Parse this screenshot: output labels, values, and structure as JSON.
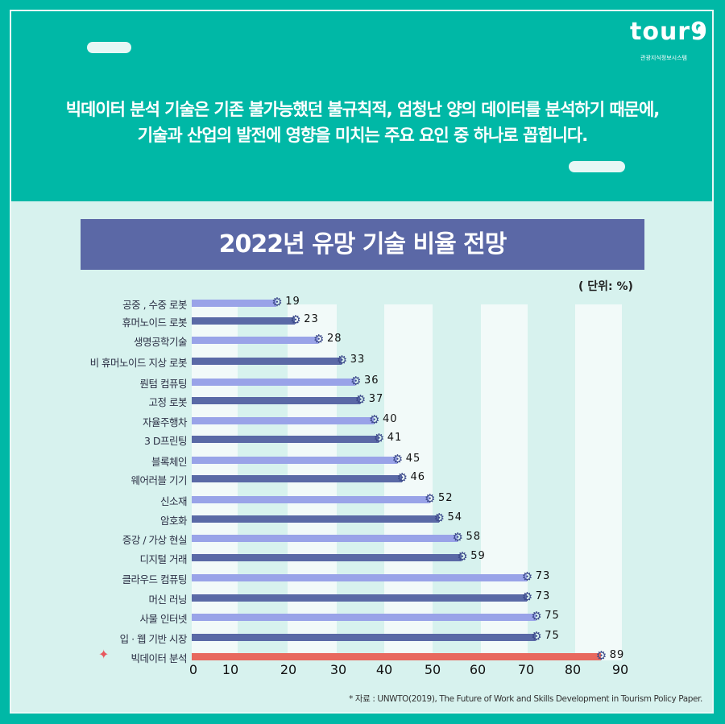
{
  "logo": {
    "text": "tour9",
    "subtitle": "관광지식정보시스템"
  },
  "headline": [
    "빅데이터 분석 기술은 기존 불가능했던 불규칙적, 엄청난 양의 데이터를 분석하기 때문에,",
    "기술과 산업의 발전에 영향을 미치는 주요 요인 중 하나로 꼽힙니다."
  ],
  "unit": "( 단위: %)",
  "source": "* 자료 : UNWTO(2019), The Future of Work and Skills Development in Tourism Policy Paper.",
  "colors": {
    "light": "#99a3e8",
    "dark": "#5a69a6",
    "highlight": "#e8685e",
    "teal": "#00b8a6",
    "banner": "#5b68a6"
  },
  "chart_data": {
    "type": "bar",
    "orientation": "horizontal",
    "title": "2022년 유망 기술 비율 전망",
    "categories": [
      "공중 , 수중 로봇",
      "휴머노이드 로봇",
      "생명공학기술",
      "비 휴머노이드 지상 로봇",
      "뤈텀 컴퓨팅",
      "고정 로봇",
      "자율주행차",
      "3 D프린팅",
      "블록체인",
      "웨어러블 기기",
      "신소재",
      "암호화",
      "증강 / 가상 현실",
      "디지털 거래",
      "클라우드 컴퓨팅",
      "머신 러닝",
      "사물 인터넷",
      "입 · 웹 기반 시장",
      "빅데이터 분석"
    ],
    "values": [
      19,
      23,
      28,
      33,
      36,
      37,
      40,
      41,
      45,
      46,
      52,
      54,
      58,
      59,
      73,
      73,
      75,
      75,
      89
    ],
    "highlight": "빅데이터 분석",
    "xticks": [
      "0",
      "10",
      "20",
      "30",
      "40",
      "50",
      "60",
      "70",
      "80",
      "90"
    ],
    "xlim": [
      0,
      90
    ],
    "grid": "alternating vertical bands"
  }
}
